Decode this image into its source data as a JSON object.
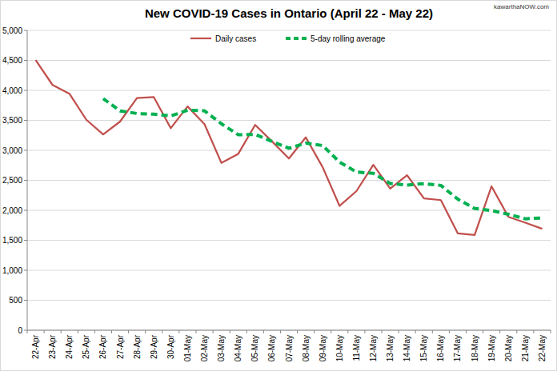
{
  "chart_data": {
    "type": "line",
    "title": "New COVID-19 Cases in Ontario (April 22 - May 22)",
    "source": "kawarthaNOW.com",
    "categories": [
      "22-Apr",
      "23-Apr",
      "24-Apr",
      "25-Apr",
      "26-Apr",
      "27-Apr",
      "28-Apr",
      "29-Apr",
      "30-Apr",
      "01-May",
      "02-May",
      "03-May",
      "04-May",
      "05-May",
      "06-May",
      "07-May",
      "08-May",
      "09-May",
      "10-May",
      "11-May",
      "12-May",
      "13-May",
      "14-May",
      "15-May",
      "16-May",
      "17-May",
      "18-May",
      "19-May",
      "20-May",
      "21-May",
      "22-May"
    ],
    "series": [
      {
        "name": "Daily cases",
        "color": "#c0504d",
        "line_style": "solid",
        "values": [
          4505,
          4090,
          3945,
          3510,
          3265,
          3480,
          3871,
          3887,
          3369,
          3732,
          3436,
          2791,
          2941,
          3424,
          3148,
          2864,
          3216,
          2719,
          2073,
          2320,
          2759,
          2362,
          2584,
          2199,
          2170,
          1616,
          1588,
          2400,
          1890,
          1794,
          1691
        ]
      },
      {
        "name": "5-day rolling average",
        "color": "#00b050",
        "line_style": "dashed",
        "values": [
          null,
          null,
          null,
          null,
          3863,
          3658,
          3614,
          3603,
          3574,
          3668,
          3659,
          3443,
          3260,
          3265,
          3148,
          3034,
          3119,
          3080,
          2804,
          2638,
          2617,
          2447,
          2420,
          2445,
          2415,
          2186,
          2031,
          1995,
          1933,
          1858,
          1873
        ]
      }
    ],
    "ylim": [
      0,
      5000
    ],
    "yticks": [
      0,
      500,
      {
        "value": 1000,
        "label": "1,000"
      },
      {
        "value": 1500,
        "label": "1,500"
      },
      {
        "value": 2000,
        "label": "2,000"
      },
      {
        "value": 2500,
        "label": "2,500"
      },
      {
        "value": 3000,
        "label": "3,000"
      },
      {
        "value": 3500,
        "label": "3,500"
      },
      {
        "value": 4000,
        "label": "4,000"
      },
      {
        "value": 4500,
        "label": "4,500"
      },
      {
        "value": 5000,
        "label": "5,000"
      }
    ],
    "grid": true,
    "legend": "top"
  }
}
